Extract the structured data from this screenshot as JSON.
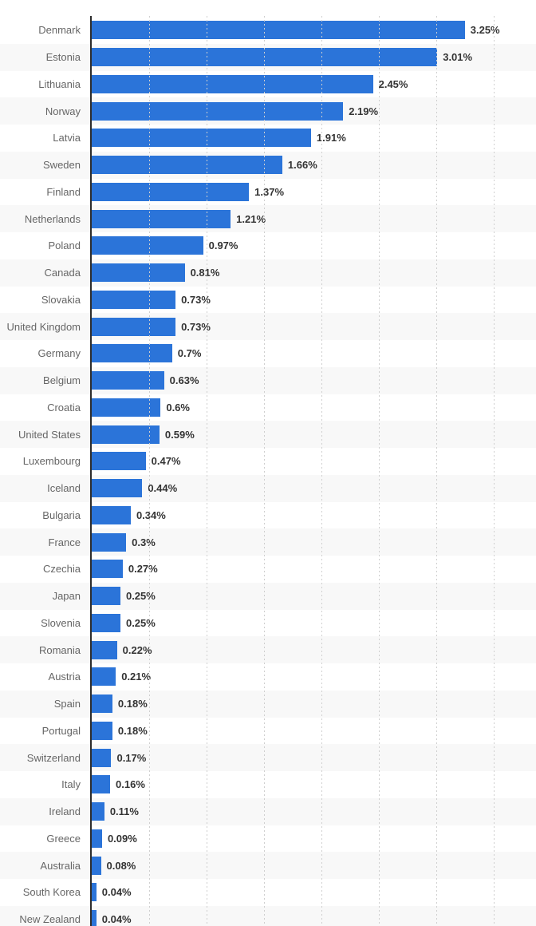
{
  "chart_data": {
    "type": "bar",
    "orientation": "horizontal",
    "title": "",
    "xlabel": "",
    "ylabel": "",
    "categories": [
      "Denmark",
      "Estonia",
      "Lithuania",
      "Norway",
      "Latvia",
      "Sweden",
      "Finland",
      "Netherlands",
      "Poland",
      "Canada",
      "Slovakia",
      "United Kingdom",
      "Germany",
      "Belgium",
      "Croatia",
      "United States",
      "Luxembourg",
      "Iceland",
      "Bulgaria",
      "France",
      "Czechia",
      "Japan",
      "Slovenia",
      "Romania",
      "Austria",
      "Spain",
      "Portugal",
      "Switzerland",
      "Italy",
      "Ireland",
      "Greece",
      "Australia",
      "South Korea",
      "New Zealand"
    ],
    "values": [
      3.25,
      3.01,
      2.45,
      2.19,
      1.91,
      1.66,
      1.37,
      1.21,
      0.97,
      0.81,
      0.73,
      0.73,
      0.7,
      0.63,
      0.6,
      0.59,
      0.47,
      0.44,
      0.34,
      0.3,
      0.27,
      0.25,
      0.25,
      0.22,
      0.21,
      0.18,
      0.18,
      0.17,
      0.16,
      0.11,
      0.09,
      0.08,
      0.04,
      0.04
    ],
    "value_labels": [
      "3.25%",
      "3.01%",
      "2.45%",
      "2.19%",
      "1.91%",
      "1.66%",
      "1.37%",
      "1.21%",
      "0.97%",
      "0.81%",
      "0.73%",
      "0.73%",
      "0.7%",
      "0.63%",
      "0.6%",
      "0.59%",
      "0.47%",
      "0.44%",
      "0.34%",
      "0.3%",
      "0.27%",
      "0.25%",
      "0.25%",
      "0.22%",
      "0.21%",
      "0.18%",
      "0.18%",
      "0.17%",
      "0.16%",
      "0.11%",
      "0.09%",
      "0.08%",
      "0.04%",
      "0.04%"
    ],
    "xlim": [
      0,
      3.87
    ],
    "gridlines": [
      0.5,
      1.0,
      1.5,
      2.0,
      2.5,
      3.0,
      3.5
    ],
    "gridline_style": "dotted",
    "legend": false,
    "zebra_striping": true,
    "striped_rows": "even (2nd, 4th, ...)",
    "colors": {
      "bar": "#2b74d9",
      "stripe": "#f8f8f8",
      "gridline": "#cfcfcf",
      "axis_line": "#2d2d2d",
      "category_label": "#666666",
      "value_label": "#333333",
      "background": "#ffffff"
    }
  }
}
